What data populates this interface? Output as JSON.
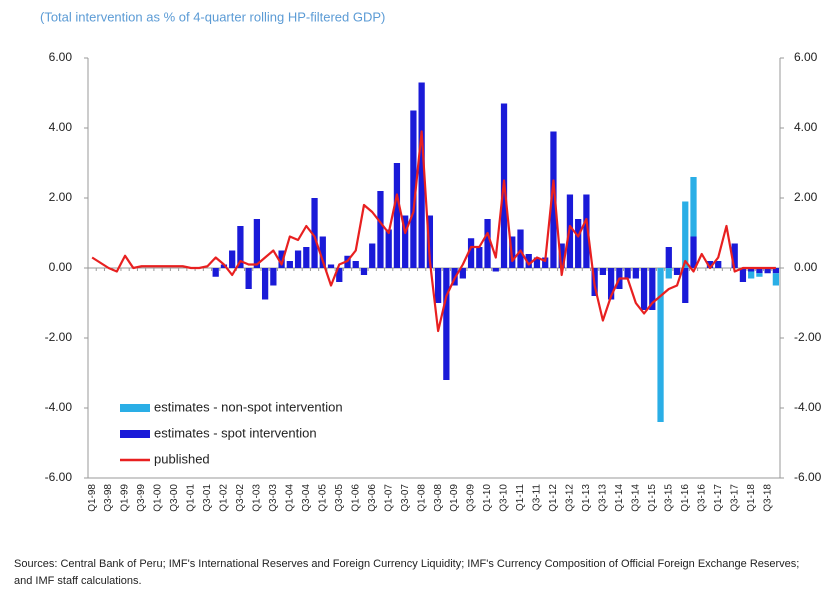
{
  "chart_data": {
    "type": "bar",
    "subtitle": "(Total intervention as % of 4-quarter rolling HP-filtered GDP)",
    "source": "Sources: Central Bank of Peru; IMF's International Reserves and Foreign Currency Liquidity; IMF's Currency Composition of Official Foreign Exchange Reserves; and IMF staff calculations.",
    "categories": [
      "Q1-98",
      null,
      "Q3-98",
      null,
      "Q1-99",
      null,
      "Q3-99",
      null,
      "Q1-00",
      null,
      "Q3-00",
      null,
      "Q1-01",
      null,
      "Q3-01",
      null,
      "Q1-02",
      null,
      "Q3-02",
      null,
      "Q1-03",
      null,
      "Q3-03",
      null,
      "Q1-04",
      null,
      "Q3-04",
      null,
      "Q1-05",
      null,
      "Q3-05",
      null,
      "Q1-06",
      null,
      "Q3-06",
      null,
      "Q1-07",
      null,
      "Q3-07",
      null,
      "Q1-08",
      null,
      "Q3-08",
      null,
      "Q1-09",
      null,
      "Q3-09",
      null,
      "Q1-10",
      null,
      "Q3-10",
      null,
      "Q1-11",
      null,
      "Q3-11",
      null,
      "Q1-12",
      null,
      "Q3-12",
      null,
      "Q1-13",
      null,
      "Q3-13",
      null,
      "Q1-14",
      null,
      "Q3-14",
      null,
      "Q1-15",
      null,
      "Q3-15",
      null,
      "Q1-16",
      null,
      "Q3-16",
      null,
      "Q1-17",
      null,
      "Q3-17",
      null,
      "Q1-18",
      null,
      "Q3-18",
      null
    ],
    "series": [
      {
        "name": "estimates - non-spot intervention",
        "kind": "bar",
        "color": "#2aaee6",
        "values": [
          0,
          0,
          0,
          0,
          0,
          0,
          0,
          0,
          0,
          0,
          0,
          0,
          0,
          0,
          0,
          0,
          0,
          0,
          0,
          0,
          0,
          0,
          0,
          0,
          0,
          0,
          0,
          0,
          0,
          0,
          0,
          0,
          0,
          0,
          0,
          0,
          0,
          0,
          0,
          0,
          0,
          0,
          0,
          0,
          0,
          0,
          0,
          0,
          0,
          0,
          0,
          0,
          0,
          0,
          0,
          0,
          0,
          0,
          0,
          0,
          0,
          0,
          0,
          0,
          0,
          0,
          0,
          0,
          0,
          -4.4,
          -0.3,
          0,
          1.9,
          1.7,
          0,
          0,
          0,
          0,
          0,
          0,
          -0.2,
          -0.1,
          0,
          -0.35
        ]
      },
      {
        "name": "estimates - spot intervention",
        "kind": "bar",
        "color": "#1a1ad8",
        "values": [
          0,
          0,
          0,
          0,
          0,
          0,
          0,
          0,
          0,
          0,
          0,
          0,
          0,
          0,
          0,
          -0.25,
          0.1,
          0.5,
          1.2,
          -0.6,
          1.4,
          -0.9,
          -0.5,
          0.5,
          0.2,
          0.5,
          0.6,
          2.0,
          0.9,
          0.1,
          -0.4,
          0.35,
          0.2,
          -0.2,
          0.7,
          2.2,
          1.1,
          3.0,
          1.5,
          4.5,
          5.3,
          1.5,
          -1.0,
          -3.2,
          -0.5,
          -0.3,
          0.85,
          0.6,
          1.4,
          -0.1,
          4.7,
          0.9,
          1.1,
          0.4,
          0.3,
          0.3,
          3.9,
          0.7,
          2.1,
          1.4,
          2.1,
          -0.8,
          -0.2,
          -0.9,
          -0.6,
          -0.3,
          -0.3,
          -1.2,
          -1.2,
          0,
          0.6,
          -0.2,
          -1.0,
          0.9,
          0,
          0.2,
          0.2,
          0,
          0.7,
          -0.4,
          -0.1,
          -0.15,
          -0.15,
          -0.15
        ]
      },
      {
        "name": "published",
        "kind": "line",
        "color": "#e82020",
        "values": [
          0.3,
          0.15,
          0,
          -0.1,
          0.35,
          0,
          0.05,
          0.05,
          0.05,
          0.05,
          0.05,
          0.05,
          0,
          0,
          0.05,
          0.3,
          0.1,
          -0.2,
          0.2,
          0.1,
          0.1,
          0.3,
          0.5,
          0.1,
          0.9,
          0.8,
          1.2,
          0.9,
          0.2,
          -0.5,
          0.1,
          0.2,
          0.5,
          1.8,
          1.6,
          1.3,
          1.0,
          2.1,
          1.0,
          1.6,
          3.9,
          0.2,
          -1.8,
          -0.8,
          -0.3,
          0.1,
          0.6,
          0.6,
          1.0,
          0.3,
          2.5,
          0.2,
          0.5,
          0.1,
          0.3,
          0.2,
          2.5,
          -0.2,
          1.2,
          0.9,
          1.4,
          -0.5,
          -1.5,
          -0.8,
          -0.3,
          -0.3,
          -1.0,
          -1.3,
          -1.0,
          -0.8,
          -0.6,
          -0.5,
          0.2,
          -0.1,
          0.4,
          0,
          0.3,
          1.2,
          -0.1,
          0,
          0,
          0,
          0,
          0
        ]
      }
    ],
    "ylim": [
      -6,
      6
    ],
    "yticks": [
      {
        "value": -6,
        "label": "-6.00"
      },
      {
        "value": -4,
        "label": "-4.00"
      },
      {
        "value": -2,
        "label": "-2.00"
      },
      {
        "value": 0,
        "label": "0.00"
      },
      {
        "value": 2,
        "label": "2.00"
      },
      {
        "value": 4,
        "label": "4.00"
      },
      {
        "value": 6,
        "label": "6.00"
      }
    ],
    "y2lim": [
      -6,
      6
    ],
    "y2ticks": [
      {
        "value": -6,
        "label": "-6.00"
      },
      {
        "value": -4,
        "label": "-4.00"
      },
      {
        "value": -2,
        "label": "-2.00"
      },
      {
        "value": 0,
        "label": "0.00"
      },
      {
        "value": 2,
        "label": "2.00"
      },
      {
        "value": 4,
        "label": "4.00"
      },
      {
        "value": 6,
        "label": "6.00"
      }
    ],
    "legend": "lower left",
    "grid": false
  }
}
